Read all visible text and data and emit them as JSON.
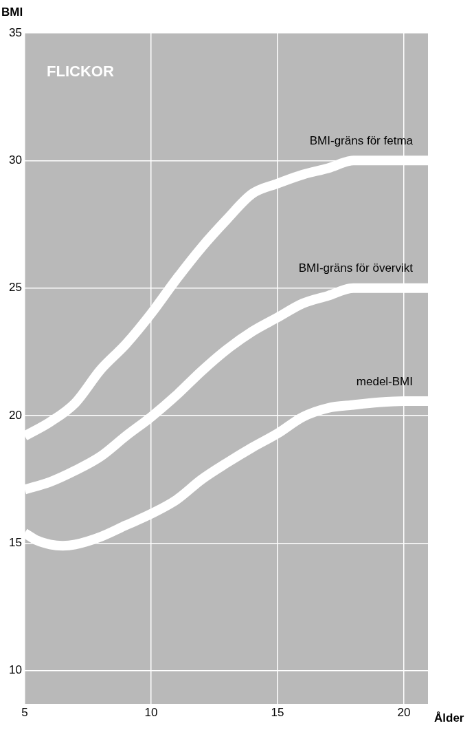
{
  "chart_data": {
    "type": "line",
    "title": "FLICKOR",
    "ylabel": "BMI",
    "xlabel": "Ålder",
    "xlim": [
      5,
      20.95
    ],
    "xticks": [
      5,
      10,
      15,
      20
    ],
    "ylim": [
      8.7,
      35
    ],
    "yticks": [
      10,
      15,
      20,
      25,
      30,
      35
    ],
    "grid": true,
    "legend": false,
    "marker": "none",
    "line_style": "solid",
    "series": [
      {
        "name": "BMI-gräns för fetma",
        "color": "#ffffff",
        "x": [
          5,
          6,
          7,
          8,
          9,
          10,
          11,
          12,
          13,
          14,
          15,
          16,
          17,
          18,
          20.95
        ],
        "values": [
          19.2,
          19.75,
          20.5,
          21.8,
          22.8,
          24.0,
          25.35,
          26.6,
          27.7,
          28.7,
          29.1,
          29.45,
          29.7,
          30.0,
          30.0
        ]
      },
      {
        "name": "BMI-gräns för övervikt",
        "color": "#ffffff",
        "x": [
          5,
          6,
          7,
          8,
          9,
          10,
          11,
          12,
          13,
          14,
          15,
          16,
          17,
          18,
          20.95
        ],
        "values": [
          17.1,
          17.4,
          17.85,
          18.4,
          19.2,
          19.95,
          20.8,
          21.75,
          22.6,
          23.3,
          23.85,
          24.4,
          24.7,
          25.0,
          25.0
        ]
      },
      {
        "name": "medel-BMI",
        "color": "#ffffff",
        "x": [
          5,
          5.5,
          6,
          6.5,
          7,
          8,
          9,
          10,
          11,
          12,
          13,
          14,
          15,
          16,
          17,
          18,
          19,
          20,
          20.95
        ],
        "values": [
          15.4,
          15.1,
          14.95,
          14.9,
          14.95,
          15.25,
          15.7,
          16.15,
          16.7,
          17.5,
          18.15,
          18.75,
          19.3,
          19.95,
          20.3,
          20.42,
          20.52,
          20.57,
          20.57
        ]
      }
    ]
  }
}
